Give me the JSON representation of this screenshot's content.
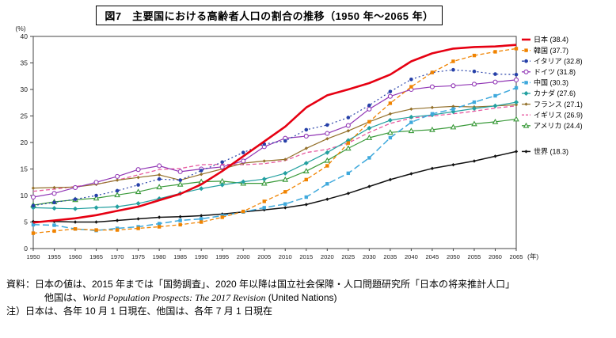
{
  "title": "図7　主要国における高齢者人口の割合の推移（1950 年～2065 年）",
  "y_unit": "(%)",
  "x_unit": "(年)",
  "footer": {
    "line1": "資料：日本の値は、2015 年までは「国勢調査」、2020 年以降は国立社会保障・人口問題研究所「日本の将来推計人口」",
    "line2_prefix": "他国は、",
    "line2_italic": "World Population Prospects: The 2017 Revision",
    "line2_suffix": " (United Nations)",
    "line3": "注）日本は、各年 10 月 1 日現在、他国は、各年 7 月 1 日現在"
  },
  "chart_data": {
    "type": "line",
    "x": [
      1950,
      1955,
      1960,
      1965,
      1970,
      1975,
      1980,
      1985,
      1990,
      1995,
      2000,
      2005,
      2010,
      2015,
      2020,
      2025,
      2030,
      2035,
      2040,
      2045,
      2050,
      2055,
      2060,
      2065
    ],
    "ylim": [
      0,
      40
    ],
    "ytick_step": 5,
    "grid": false,
    "legend_position": "right",
    "series": [
      {
        "name": "日本",
        "legend_label": "日本 (38.4)",
        "color": "#e60012",
        "width": 2.6,
        "dash": "",
        "marker": "none",
        "values": [
          4.9,
          5.3,
          5.7,
          6.3,
          7.1,
          7.9,
          9.1,
          10.3,
          12.1,
          14.6,
          17.4,
          20.2,
          23.0,
          26.6,
          28.9,
          30.0,
          31.2,
          32.8,
          35.3,
          36.8,
          37.7,
          38.0,
          38.1,
          38.4
        ]
      },
      {
        "name": "韓国",
        "legend_label": "韓国 (37.7)",
        "color": "#f08300",
        "width": 1.3,
        "dash": "5,3",
        "marker": "square",
        "values": [
          2.9,
          3.3,
          3.7,
          3.5,
          3.5,
          3.8,
          4.1,
          4.5,
          5.0,
          5.9,
          7.0,
          8.9,
          10.7,
          13.0,
          15.6,
          19.9,
          23.9,
          27.4,
          30.5,
          33.2,
          35.3,
          36.4,
          37.1,
          37.7
        ]
      },
      {
        "name": "イタリア",
        "legend_label": "イタリア (32.8)",
        "color": "#2640a8",
        "width": 1.2,
        "dash": "2,3",
        "marker": "circle",
        "values": [
          8.1,
          8.7,
          9.3,
          10.0,
          10.9,
          12.0,
          13.1,
          12.9,
          14.7,
          16.3,
          18.1,
          19.7,
          20.3,
          22.4,
          23.3,
          24.7,
          27.0,
          29.6,
          31.9,
          33.2,
          33.7,
          33.4,
          32.9,
          32.8
        ]
      },
      {
        "name": "ドイツ",
        "legend_label": "ドイツ (31.8)",
        "color": "#9136b5",
        "width": 1.2,
        "dash": "",
        "marker": "circle-open",
        "values": [
          9.7,
          10.4,
          11.5,
          12.5,
          13.6,
          14.9,
          15.6,
          14.5,
          15.0,
          15.4,
          16.5,
          19.2,
          20.8,
          21.2,
          21.7,
          23.2,
          26.3,
          28.7,
          30.0,
          30.5,
          30.7,
          31.0,
          31.4,
          31.8
        ]
      },
      {
        "name": "中国",
        "legend_label": "中国 (30.3)",
        "color": "#3fa9dc",
        "width": 1.5,
        "dash": "8,4",
        "marker": "square",
        "values": [
          4.5,
          4.4,
          3.7,
          3.4,
          3.8,
          4.1,
          4.7,
          5.3,
          5.6,
          6.2,
          6.9,
          7.7,
          8.4,
          9.7,
          12.2,
          14.2,
          17.1,
          20.9,
          23.8,
          25.4,
          26.3,
          27.6,
          28.8,
          30.3
        ]
      },
      {
        "name": "カナダ",
        "legend_label": "カナダ (27.6)",
        "color": "#23a0a0",
        "width": 1.2,
        "dash": "",
        "marker": "diamond",
        "values": [
          7.7,
          7.6,
          7.5,
          7.7,
          7.9,
          8.5,
          9.4,
          10.4,
          11.3,
          12.0,
          12.6,
          13.1,
          14.2,
          16.1,
          18.1,
          20.4,
          22.7,
          24.2,
          24.8,
          25.2,
          25.8,
          26.4,
          26.9,
          27.6
        ]
      },
      {
        "name": "フランス",
        "legend_label": "フランス (27.1)",
        "color": "#93702a",
        "width": 1.2,
        "dash": "",
        "marker": "diamond-small",
        "values": [
          11.4,
          11.5,
          11.6,
          12.1,
          12.9,
          13.4,
          13.9,
          12.9,
          14.0,
          15.0,
          16.1,
          16.5,
          16.8,
          18.9,
          20.7,
          22.2,
          23.9,
          25.4,
          26.3,
          26.6,
          26.8,
          26.7,
          26.9,
          27.1
        ]
      },
      {
        "name": "イギリス",
        "legend_label": "イギリス (26.9)",
        "color": "#e75aa0",
        "width": 1.3,
        "dash": "5,3",
        "marker": "none",
        "values": [
          10.8,
          11.2,
          11.7,
          12.1,
          12.9,
          13.9,
          14.9,
          15.1,
          15.8,
          15.9,
          15.8,
          16.0,
          16.6,
          18.1,
          18.7,
          19.9,
          21.9,
          23.6,
          24.6,
          25.0,
          25.4,
          25.9,
          26.5,
          26.9
        ]
      },
      {
        "name": "アメリカ",
        "legend_label": "アメリカ (24.4)",
        "color": "#3a9a3a",
        "width": 1.2,
        "dash": "",
        "marker": "triangle-open",
        "values": [
          8.2,
          8.8,
          9.2,
          9.5,
          10.1,
          10.7,
          11.6,
          12.1,
          12.6,
          12.7,
          12.3,
          12.3,
          13.0,
          14.6,
          16.6,
          18.9,
          20.9,
          21.9,
          22.2,
          22.4,
          22.9,
          23.5,
          23.9,
          24.4
        ]
      },
      {
        "name": "世界",
        "legend_label": "世界 (18.3)",
        "color": "#111111",
        "width": 1.5,
        "dash": "",
        "marker": "diamond-small",
        "values": [
          5.1,
          5.1,
          5.0,
          5.0,
          5.3,
          5.6,
          5.9,
          6.0,
          6.2,
          6.5,
          6.9,
          7.3,
          7.7,
          8.3,
          9.3,
          10.4,
          11.7,
          13.0,
          14.1,
          15.1,
          15.8,
          16.5,
          17.4,
          18.3
        ]
      }
    ]
  }
}
